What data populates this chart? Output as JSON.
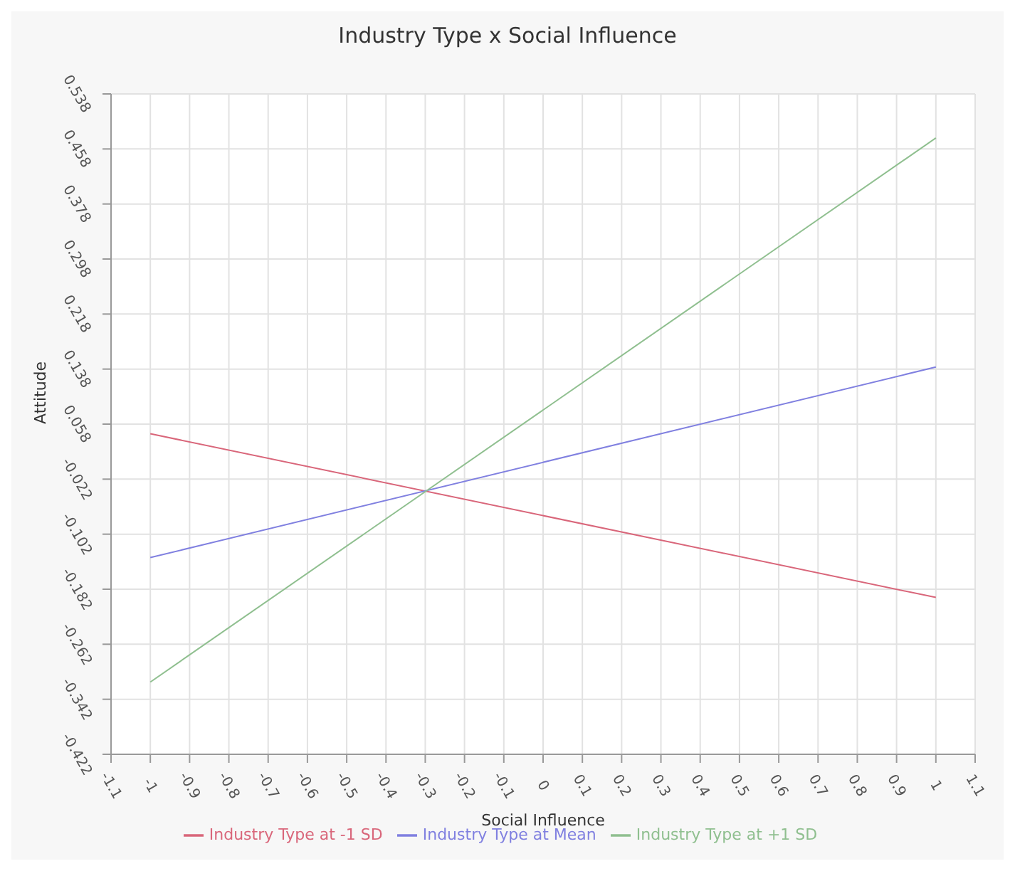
{
  "chart_data": {
    "type": "line",
    "title": "Industry Type x Social Influence",
    "xlabel": "Social Influence",
    "ylabel": "Attitude",
    "x": [
      -1,
      1
    ],
    "series": [
      {
        "name": "Industry Type at -1 SD",
        "color": "#d9667a",
        "values": [
          0.044,
          -0.194
        ]
      },
      {
        "name": "Industry Type at Mean",
        "color": "#8080e0",
        "values": [
          -0.136,
          0.141
        ]
      },
      {
        "name": "Industry Type at +1 SD",
        "color": "#8fbf8f",
        "values": [
          -0.317,
          0.474
        ]
      }
    ],
    "xlim": [
      -1.1,
      1.1
    ],
    "xticks": [
      -1.1,
      -1,
      -0.9,
      -0.8,
      -0.7,
      -0.6,
      -0.5,
      -0.4,
      -0.3,
      -0.2,
      -0.1,
      0,
      0.1,
      0.2,
      0.3,
      0.4,
      0.5,
      0.6,
      0.7,
      0.8,
      0.9,
      1,
      1.1
    ],
    "ylim": [
      -0.422,
      0.538
    ],
    "yticks": [
      -0.422,
      -0.342,
      -0.262,
      -0.182,
      -0.102,
      -0.022,
      0.058,
      0.138,
      0.218,
      0.298,
      0.378,
      0.458,
      0.538
    ],
    "grid": true,
    "legend": "bottom",
    "marker": "none",
    "line_style": "solid"
  }
}
